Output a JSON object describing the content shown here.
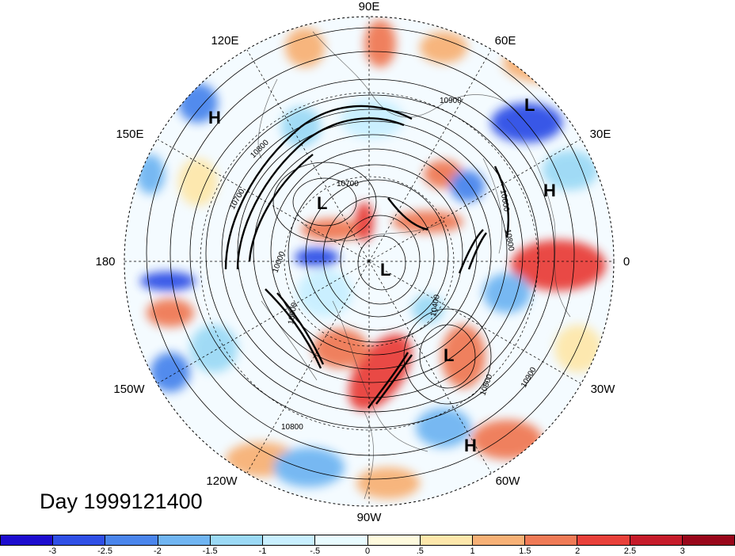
{
  "map": {
    "projection": "north polar stereographic",
    "longitude_labels": [
      "90E",
      "60E",
      "30E",
      "0",
      "30W",
      "60W",
      "90W",
      "120W",
      "150W",
      "180",
      "150E",
      "120E"
    ],
    "pressure_centers": [
      {
        "type": "H",
        "name": "high-east-asia"
      },
      {
        "type": "L",
        "name": "low-scandinavia"
      },
      {
        "type": "H",
        "name": "high-europe"
      },
      {
        "type": "L",
        "name": "low-siberia"
      },
      {
        "type": "L",
        "name": "low-polar"
      },
      {
        "type": "L",
        "name": "low-north-atlantic"
      },
      {
        "type": "H",
        "name": "high-subtropical-atlantic"
      }
    ],
    "contour_labels": [
      "10900",
      "10800",
      "10700",
      "10600",
      "10800",
      "10900",
      "10000",
      "10400",
      "10800",
      "10900",
      "10800",
      "10700"
    ]
  },
  "title": "Day 1999121400",
  "colorbar": {
    "colors": [
      "#1d0ccf",
      "#2f4fe6",
      "#4a85ec",
      "#70b5f2",
      "#9bd9f5",
      "#c8efff",
      "#e8fbff",
      "#fefadd",
      "#fde7ab",
      "#f7b176",
      "#ef7a56",
      "#e8403a",
      "#c61b2a",
      "#99061a"
    ],
    "tick_labels": [
      "-3",
      "-2.5",
      "-2",
      "-1.5",
      "-1",
      "-.5",
      "0",
      ".5",
      "1",
      "1.5",
      "2",
      "2.5",
      "3"
    ]
  }
}
